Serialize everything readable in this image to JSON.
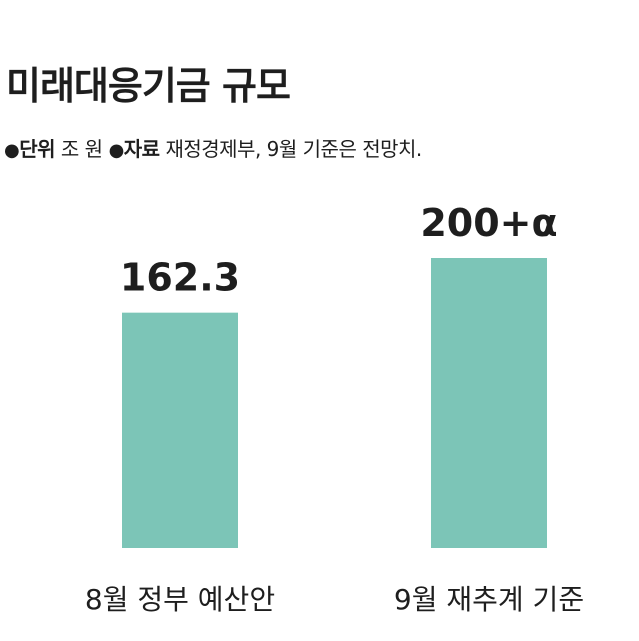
{
  "title": "미래대응기금 규모",
  "meta": {
    "bullet": "●",
    "unit_key": "단위",
    "unit_value": "조 원",
    "source_key": "자료",
    "source_value": "재정경제부, 9월 기준은 전망치."
  },
  "colors": {
    "bar": "#7cc5b7",
    "text": "#1e1e1e"
  },
  "chart_data": {
    "type": "bar",
    "title": "미래대응기금 규모",
    "categories": [
      "8월 정부 예산안",
      "9월 재추계 기준"
    ],
    "values": [
      162.3,
      200
    ],
    "data_labels": [
      "162.3",
      "200+α"
    ],
    "ylim": [
      0,
      200
    ],
    "grid": false,
    "legend": "none"
  }
}
